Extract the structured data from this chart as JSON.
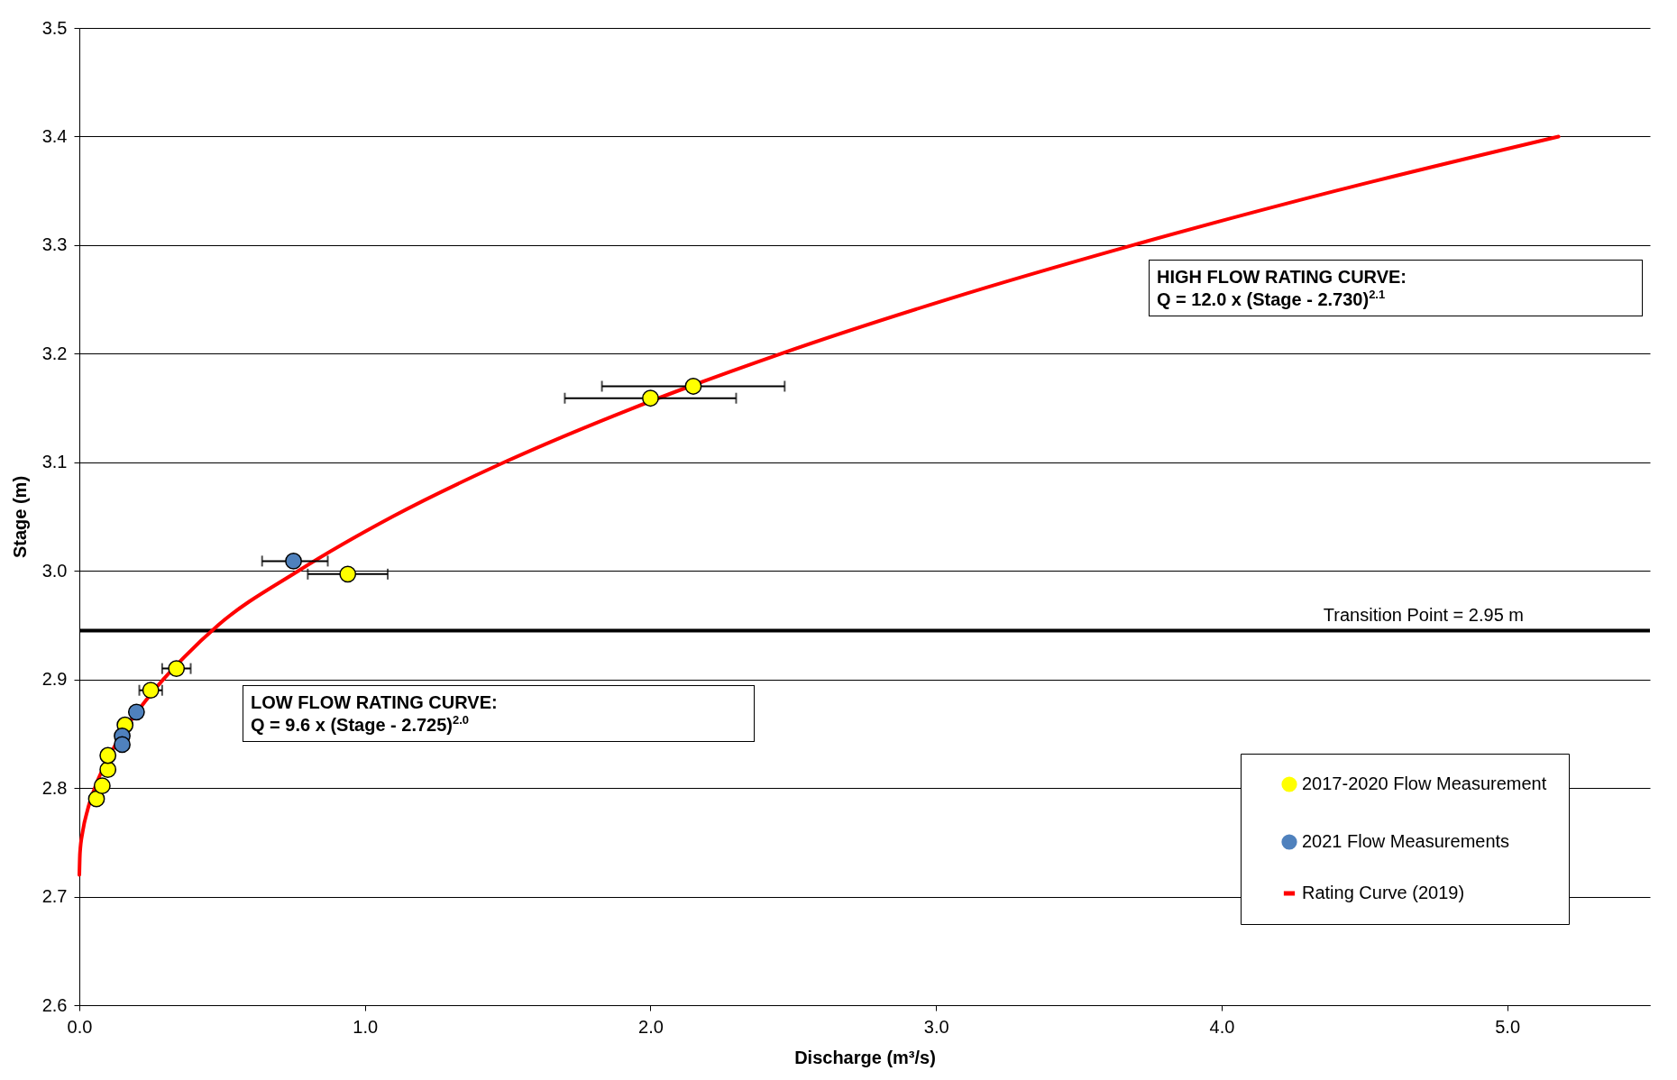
{
  "chart_data": {
    "type": "scatter",
    "xlabel": "Discharge (m³/s)",
    "ylabel": "Stage (m)",
    "xlim": [
      0,
      5.5
    ],
    "xticks": [
      {
        "value": 0,
        "label": "0.0"
      },
      {
        "value": 1,
        "label": "1.0"
      },
      {
        "value": 2,
        "label": "2.0"
      },
      {
        "value": 3,
        "label": "3.0"
      },
      {
        "value": 4,
        "label": "4.0"
      },
      {
        "value": 5,
        "label": "5.0"
      }
    ],
    "ylim": [
      2.6,
      3.5
    ],
    "yticks": [
      2.6,
      2.7,
      2.8,
      2.9,
      {
        "value": 3,
        "label": "3.0"
      },
      3.1,
      3.2,
      3.3,
      3.4,
      3.5
    ],
    "grid": "y",
    "legend": "bottom right",
    "series": [
      {
        "name": "2017-2020 Flow Measurement",
        "marker": "circle",
        "color": "#ffff00",
        "x": [
          0.06,
          0.08,
          0.1,
          0.1,
          0.16,
          0.25,
          0.34,
          0.94,
          2.0,
          2.15
        ],
        "values": [
          2.79,
          2.802,
          2.817,
          2.83,
          2.858,
          2.89,
          2.91,
          2.997,
          3.159,
          3.17
        ],
        "xerrors": [
          null,
          null,
          null,
          null,
          null,
          [
            0.21,
            0.29
          ],
          [
            0.29,
            0.39
          ],
          [
            0.8,
            1.08
          ],
          [
            1.7,
            2.3
          ],
          [
            1.83,
            2.47
          ]
        ]
      },
      {
        "name": "2021 Flow Measurements",
        "marker": "circle",
        "color": "#4f81bd",
        "x": [
          0.15,
          0.15,
          0.2,
          0.75
        ],
        "values": [
          2.848,
          2.84,
          2.87,
          3.009
        ],
        "xerrors": [
          null,
          null,
          [
            0.18,
            0.22
          ],
          [
            0.64,
            0.87
          ]
        ]
      },
      {
        "name": "Rating Curve (2019)",
        "type": "line",
        "color": "#ff0000",
        "line_style": "solid",
        "x": [
          0,
          0.0022,
          0.0118,
          0.029,
          0.054,
          0.127,
          0.175,
          0.231,
          0.294,
          0.365,
          0.486,
          0.767,
          1.097,
          1.488,
          1.94,
          2.457,
          3.04,
          3.69,
          4.4,
          5.18
        ],
        "values": [
          2.72,
          2.74,
          2.76,
          2.78,
          2.8,
          2.84,
          2.86,
          2.88,
          2.9,
          2.92,
          2.95,
          3.0,
          3.05,
          3.1,
          3.15,
          3.2,
          3.25,
          3.3,
          3.35,
          3.4
        ]
      }
    ],
    "ref_lines": [
      {
        "axis": "y",
        "value": 2.945,
        "label": "Transition Point = 2.95 m",
        "color": "#000000"
      }
    ],
    "annotations": [
      "HIGH FLOW RATING CURVE:\nQ = 12.0 x (Stage - 2.730)$^{2.1}$",
      "LOW FLOW RATING CURVE:\nQ = 9.6 x (Stage - 2.725)$^{2.0}$"
    ]
  }
}
